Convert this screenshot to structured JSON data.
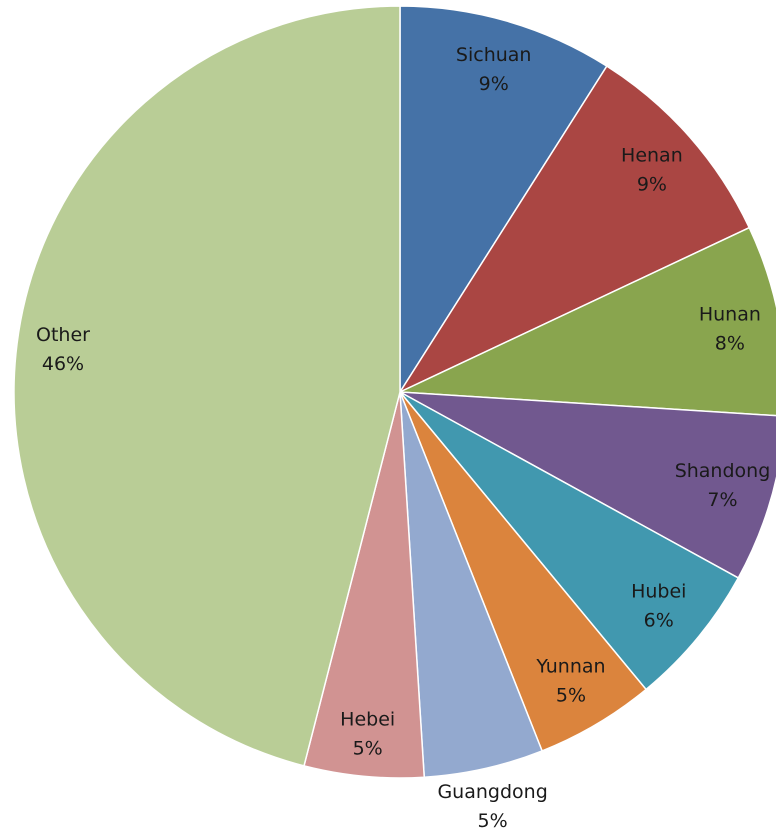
{
  "chart_data": {
    "type": "pie",
    "categories": [
      "Sichuan",
      "Henan",
      "Hunan",
      "Shandong",
      "Hubei",
      "Yunnan",
      "Guangdong",
      "Hebei",
      "Other"
    ],
    "values": [
      9,
      9,
      8,
      7,
      6,
      5,
      5,
      5,
      46
    ],
    "value_labels": [
      "9%",
      "9%",
      "8%",
      "7%",
      "6%",
      "5%",
      "5%",
      "5%",
      "46%"
    ],
    "colors": [
      "#4572a7",
      "#aa4643",
      "#89a54e",
      "#71588f",
      "#4198af",
      "#db843d",
      "#93a9cf",
      "#d19392",
      "#b9cd96"
    ]
  }
}
